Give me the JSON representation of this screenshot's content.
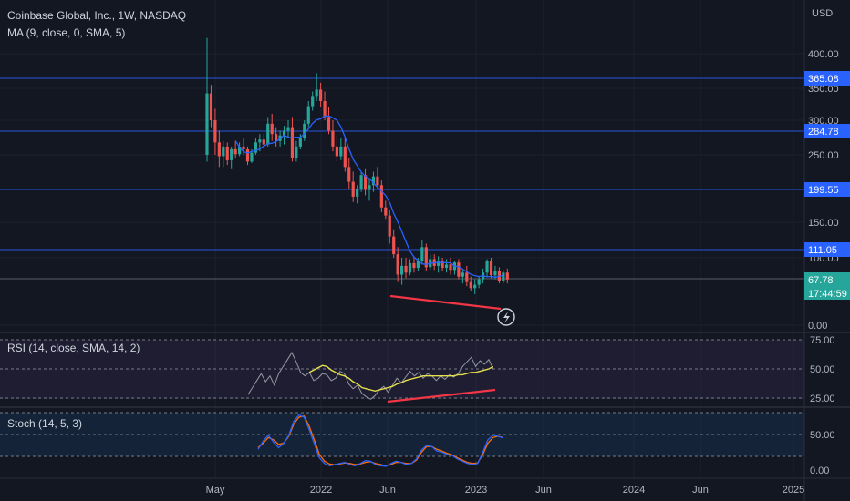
{
  "header": {
    "symbol_title": "Coinbase Global, Inc., 1W, NASDAQ",
    "ma_legend": "MA (9, close, 0, SMA, 5)",
    "currency": "USD"
  },
  "price_axis": {
    "ticks": [
      "400.00",
      "350.00",
      "300.00",
      "250.00",
      "150.00",
      "100.00",
      "0.00"
    ],
    "level_labels": [
      "365.08",
      "284.78",
      "199.55",
      "111.05"
    ],
    "last_price": "67.78",
    "countdown": "17:44:59"
  },
  "rsi": {
    "legend": "RSI (14, close, SMA, 14, 2)",
    "ticks": [
      "75.00",
      "50.00",
      "25.00"
    ]
  },
  "stoch": {
    "legend": "Stoch (14, 5, 3)",
    "ticks": [
      "50.00",
      "0.00"
    ]
  },
  "time_axis": {
    "labels": [
      "May",
      "2022",
      "Jun",
      "2023",
      "Jun",
      "2024",
      "Jun",
      "2025"
    ]
  },
  "colors": {
    "background": "#131722",
    "up": "#26a69a",
    "down": "#ef5350",
    "ma": "#2962ff",
    "level_line": "#2962ff",
    "trendline": "#f23645",
    "rsi_line": "#9598a1",
    "rsi_ma": "#e5e04b",
    "stoch_k": "#2962ff",
    "stoch_d": "#ff6d00"
  },
  "chart_data": [
    {
      "type": "candlestick",
      "title": "Coinbase Global, Inc., 1W, NASDAQ",
      "ylabel": "USD",
      "ylim": [
        0,
        400
      ],
      "grid": true,
      "horizontal_levels": [
        365.08,
        284.78,
        199.55,
        111.05,
        67.78
      ],
      "x_ticks": [
        "May",
        "2022",
        "Jun",
        "2023",
        "Jun",
        "2024",
        "Jun",
        "2025"
      ],
      "candles_ohlc": [
        [
          250,
          430,
          240,
          342
        ],
        [
          342,
          355,
          290,
          300
        ],
        [
          300,
          318,
          250,
          268
        ],
        [
          268,
          285,
          232,
          248
        ],
        [
          248,
          270,
          232,
          262
        ],
        [
          262,
          268,
          235,
          242
        ],
        [
          242,
          262,
          230,
          258
        ],
        [
          258,
          270,
          245,
          251
        ],
        [
          251,
          268,
          248,
          262
        ],
        [
          262,
          275,
          250,
          258
        ],
        [
          258,
          262,
          235,
          240
        ],
        [
          240,
          258,
          238,
          253
        ],
        [
          253,
          275,
          250,
          268
        ],
        [
          268,
          280,
          255,
          272
        ],
        [
          272,
          280,
          260,
          265
        ],
        [
          265,
          305,
          262,
          295
        ],
        [
          295,
          310,
          270,
          280
        ],
        [
          280,
          290,
          262,
          270
        ],
        [
          270,
          285,
          262,
          278
        ],
        [
          278,
          292,
          265,
          285
        ],
        [
          285,
          300,
          275,
          290
        ],
        [
          290,
          305,
          240,
          245
        ],
        [
          245,
          270,
          240,
          262
        ],
        [
          262,
          280,
          258,
          275
        ],
        [
          275,
          300,
          270,
          295
        ],
        [
          295,
          330,
          290,
          322
        ],
        [
          322,
          345,
          315,
          338
        ],
        [
          338,
          372,
          330,
          348
        ],
        [
          348,
          358,
          320,
          330
        ],
        [
          330,
          345,
          300,
          305
        ],
        [
          305,
          320,
          280,
          285
        ],
        [
          285,
          300,
          255,
          262
        ],
        [
          262,
          278,
          240,
          248
        ],
        [
          248,
          275,
          242,
          262
        ],
        [
          262,
          275,
          225,
          232
        ],
        [
          232,
          245,
          200,
          210
        ],
        [
          210,
          225,
          180,
          188
        ],
        [
          188,
          205,
          178,
          200
        ],
        [
          200,
          225,
          195,
          220
        ],
        [
          220,
          230,
          190,
          198
        ],
        [
          198,
          215,
          182,
          205
        ],
        [
          205,
          225,
          195,
          218
        ],
        [
          218,
          232,
          200,
          205
        ],
        [
          205,
          212,
          165,
          172
        ],
        [
          172,
          182,
          155,
          160
        ],
        [
          160,
          168,
          120,
          130
        ],
        [
          130,
          140,
          100,
          105
        ],
        [
          105,
          115,
          64,
          75
        ],
        [
          75,
          100,
          60,
          88
        ],
        [
          88,
          100,
          70,
          78
        ],
        [
          78,
          98,
          74,
          92
        ],
        [
          92,
          102,
          78,
          85
        ],
        [
          85,
          100,
          80,
          95
        ],
        [
          95,
          125,
          90,
          115
        ],
        [
          115,
          120,
          80,
          86
        ],
        [
          86,
          105,
          82,
          98
        ],
        [
          98,
          105,
          82,
          88
        ],
        [
          88,
          102,
          78,
          95
        ],
        [
          95,
          100,
          80,
          85
        ],
        [
          85,
          98,
          78,
          90
        ],
        [
          90,
          100,
          75,
          82
        ],
        [
          82,
          96,
          75,
          93
        ],
        [
          93,
          98,
          68,
          72
        ],
        [
          72,
          82,
          62,
          78
        ],
        [
          78,
          88,
          58,
          64
        ],
        [
          64,
          72,
          50,
          55
        ],
        [
          55,
          68,
          46,
          60
        ],
        [
          60,
          72,
          55,
          68
        ],
        [
          68,
          84,
          62,
          78
        ],
        [
          78,
          98,
          72,
          95
        ],
        [
          95,
          100,
          70,
          74
        ],
        [
          74,
          88,
          68,
          80
        ],
        [
          80,
          86,
          62,
          66
        ],
        [
          66,
          82,
          62,
          78
        ],
        [
          78,
          84,
          62,
          67.78
        ]
      ],
      "ma_period": 9
    },
    {
      "type": "line",
      "title": "RSI (14, close, SMA, 14, 2)",
      "ylim": [
        20,
        80
      ],
      "bands": [
        70,
        50,
        30
      ],
      "series": [
        {
          "name": "RSI",
          "values": [
            28,
            34,
            40,
            46,
            39,
            44,
            36,
            46,
            52,
            58,
            64,
            56,
            47,
            44,
            47,
            40,
            42,
            46,
            45,
            40,
            42,
            48,
            46,
            37,
            33,
            36,
            29,
            26,
            24,
            27,
            32,
            35,
            30,
            36,
            42,
            38,
            43,
            48,
            44,
            47,
            42,
            46,
            44,
            40,
            44,
            41,
            45,
            43,
            46,
            52,
            56,
            60,
            52,
            57,
            54,
            58,
            50
          ]
        },
        {
          "name": "MA",
          "values": [
            null,
            null,
            null,
            null,
            null,
            null,
            null,
            null,
            null,
            null,
            null,
            null,
            null,
            null,
            47,
            49,
            51,
            53,
            52,
            49,
            47,
            45,
            44,
            42,
            39,
            37,
            34,
            33,
            32,
            31,
            32,
            33,
            34,
            35,
            37,
            38,
            40,
            41,
            42,
            43,
            44,
            44,
            44,
            44,
            44,
            44,
            44,
            44,
            45,
            45,
            46,
            47,
            47,
            48,
            49,
            50,
            52
          ]
        }
      ]
    },
    {
      "type": "line",
      "title": "Stoch (14, 5, 3)",
      "ylim": [
        0,
        100
      ],
      "bands": [
        80,
        50,
        20
      ],
      "series": [
        {
          "name": "%K",
          "values": [
            35,
            50,
            60,
            48,
            38,
            45,
            60,
            85,
            96,
            92,
            70,
            45,
            20,
            10,
            6,
            8,
            10,
            12,
            8,
            6,
            10,
            15,
            14,
            8,
            6,
            5,
            10,
            14,
            12,
            8,
            10,
            18,
            34,
            42,
            40,
            32,
            30,
            26,
            24,
            18,
            14,
            10,
            8,
            10,
            30,
            52,
            60,
            58,
            55
          ]
        },
        {
          "name": "%D",
          "values": [
            38,
            46,
            56,
            52,
            44,
            46,
            58,
            80,
            92,
            94,
            76,
            52,
            26,
            14,
            9,
            8,
            9,
            11,
            10,
            8,
            9,
            12,
            13,
            10,
            8,
            6,
            8,
            12,
            12,
            10,
            10,
            16,
            30,
            40,
            40,
            35,
            32,
            28,
            25,
            20,
            16,
            12,
            10,
            11,
            26,
            46,
            56,
            58,
            56
          ]
        }
      ]
    }
  ]
}
